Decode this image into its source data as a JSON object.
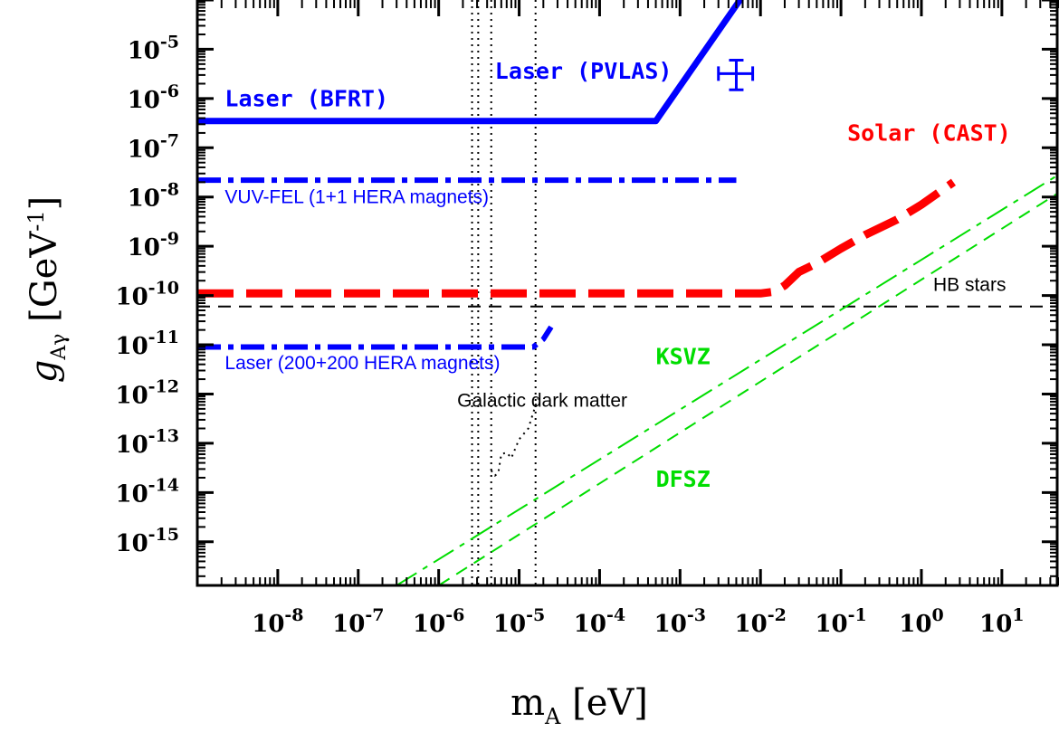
{
  "chart_data": {
    "type": "line",
    "xlabel": "m_A [eV]",
    "ylabel": "g_Aγ [GeV^-1]",
    "x_scale": "log",
    "y_scale": "log",
    "xlim": [
      1e-09,
      50
    ],
    "ylim": [
      1.3e-16,
      0.0001
    ],
    "xticks": [
      {
        "v": 1e-08,
        "m": "10",
        "e": "-8"
      },
      {
        "v": 1e-07,
        "m": "10",
        "e": "-7"
      },
      {
        "v": 1e-06,
        "m": "10",
        "e": "-6"
      },
      {
        "v": 1e-05,
        "m": "10",
        "e": "-5"
      },
      {
        "v": 0.0001,
        "m": "10",
        "e": "-4"
      },
      {
        "v": 0.001,
        "m": "10",
        "e": "-3"
      },
      {
        "v": 0.01,
        "m": "10",
        "e": "-2"
      },
      {
        "v": 0.1,
        "m": "10",
        "e": "-1"
      },
      {
        "v": 1,
        "m": "10",
        "e": "0"
      },
      {
        "v": 10,
        "m": "10",
        "e": "1"
      }
    ],
    "yticks": [
      {
        "v": 1e-05,
        "m": "10",
        "e": "-5"
      },
      {
        "v": 1e-06,
        "m": "10",
        "e": "-6"
      },
      {
        "v": 1e-07,
        "m": "10",
        "e": "-7"
      },
      {
        "v": 1e-08,
        "m": "10",
        "e": "-8"
      },
      {
        "v": 1e-09,
        "m": "10",
        "e": "-9"
      },
      {
        "v": 1e-10,
        "m": "10",
        "e": "-10"
      },
      {
        "v": 1e-11,
        "m": "10",
        "e": "-11"
      },
      {
        "v": 1e-12,
        "m": "10",
        "e": "-12"
      },
      {
        "v": 1e-13,
        "m": "10",
        "e": "-13"
      },
      {
        "v": 1e-14,
        "m": "10",
        "e": "-14"
      },
      {
        "v": 1e-15,
        "m": "10",
        "e": "-15"
      }
    ],
    "series": [
      {
        "name": "Laser (BFRT)",
        "color": "#0000ff",
        "style": "solid",
        "width": 7,
        "x": [
          1e-09,
          0.0005,
          0.006
        ],
        "y": [
          3.5e-07,
          3.5e-07,
          0.00012
        ]
      },
      {
        "name": "VUV-FEL (1+1 HERA magnets)",
        "color": "#0000ff",
        "style": "dashdot",
        "width": 6,
        "x": [
          1e-09,
          0.005
        ],
        "y": [
          2.2e-08,
          2.2e-08
        ]
      },
      {
        "name": "Solar (CAST)",
        "color": "#ff0000",
        "style": "longdash",
        "width": 9,
        "x": [
          1e-09,
          0.01,
          0.015,
          0.02,
          0.03,
          0.05,
          0.1,
          0.2,
          0.5,
          1,
          2.5
        ],
        "y": [
          1.1e-10,
          1.1e-10,
          1.2e-10,
          1.6e-10,
          3e-10,
          4.5e-10,
          9e-10,
          1.7e-09,
          3.5e-09,
          7e-09,
          2e-08
        ]
      },
      {
        "name": "HB stars",
        "color": "#000000",
        "style": "dash",
        "width": 2,
        "x": [
          1e-09,
          50
        ],
        "y": [
          6e-11,
          6e-11
        ]
      },
      {
        "name": "Laser (200+200 HERA magnets)",
        "color": "#0000ff",
        "style": "dashdot",
        "width": 6,
        "x": [
          1e-09,
          1.5e-05,
          2e-05,
          2.5e-05
        ],
        "y": [
          9e-12,
          9e-12,
          1.3e-11,
          2.3e-11
        ]
      },
      {
        "name": "KSVZ",
        "color": "#00dd00",
        "style": "dashdot",
        "width": 2,
        "x": [
          3e-07,
          50
        ],
        "y": [
          1.3e-16,
          2.8e-08
        ]
      },
      {
        "name": "DFSZ",
        "color": "#00dd00",
        "style": "dash",
        "width": 2,
        "x": [
          1e-06,
          50
        ],
        "y": [
          1.3e-16,
          1.2e-08
        ]
      },
      {
        "name": "Galactic dark matter",
        "color": "#000000",
        "style": "dot",
        "width": 2,
        "x": [
          4.5e-06,
          5e-06,
          5.5e-06,
          6e-06,
          7e-06,
          8e-06,
          1e-05,
          1.3e-05,
          1.7e-05
        ],
        "y": [
          2.8e-14,
          2.2e-14,
          2.5e-14,
          6e-14,
          6.5e-14,
          5e-14,
          1.2e-13,
          2e-13,
          8e-13
        ]
      }
    ],
    "vlines": [
      2.6e-06,
      3.1e-06,
      4.5e-06,
      1.6e-05
    ],
    "pvlas": {
      "x": 0.005,
      "y": 3.2e-06,
      "xerr": [
        0.003,
        0.008
      ],
      "yerr": [
        1.5e-06,
        6e-06
      ]
    },
    "annotations": [
      {
        "text": "Laser (BFRT)",
        "color": "#0000ff",
        "class": "ann-serif",
        "x": 2.2e-09,
        "y": 7e-07
      },
      {
        "text": "Laser (PVLAS)",
        "color": "#0000ff",
        "class": "ann-serif",
        "x": 5e-06,
        "y": 2.5e-06
      },
      {
        "text": "Solar (CAST)",
        "color": "#ff0000",
        "class": "ann-serif",
        "x": 0.12,
        "y": 1.4e-07
      },
      {
        "text": "VUV-FEL (1+1 HERA magnets)",
        "color": "#0000ff",
        "class": "ann-sans",
        "x": 2.2e-09,
        "y": 7.5e-09
      },
      {
        "text": "HB stars",
        "color": "#000000",
        "class": "ann-sans",
        "x": 1.4,
        "y": 1.25e-10
      },
      {
        "text": "Laser (200+200 HERA magnets)",
        "color": "#0000ff",
        "class": "ann-sans",
        "x": 2.2e-09,
        "y": 3.2e-12
      },
      {
        "text": "KSVZ",
        "color": "#00dd00",
        "class": "ann-serif",
        "x": 0.0005,
        "y": 4e-12
      },
      {
        "text": "Galactic dark matter",
        "color": "#000000",
        "class": "ann-sans",
        "x": 1.7e-06,
        "y": 5.5e-13
      },
      {
        "text": "DFSZ",
        "color": "#00dd00",
        "class": "ann-serif",
        "x": 0.0005,
        "y": 1.3e-14
      }
    ]
  }
}
